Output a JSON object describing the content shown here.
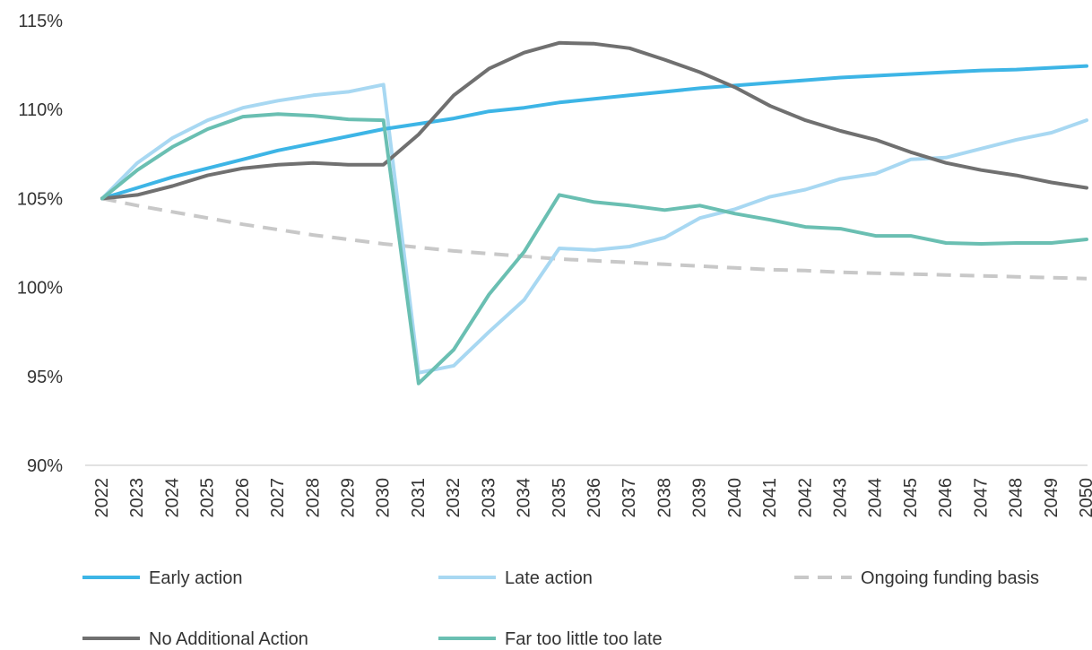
{
  "chart_data": {
    "type": "line",
    "title": "",
    "xlabel": "",
    "ylabel": "",
    "ylim": [
      90,
      115
    ],
    "yticks": [
      90,
      95,
      100,
      105,
      110,
      115
    ],
    "y_tick_suffix": "%",
    "grid": false,
    "legend_position": "bottom",
    "x": [
      "2022",
      "2023",
      "2024",
      "2025",
      "2026",
      "2027",
      "2028",
      "2029",
      "2030",
      "2031",
      "2032",
      "2033",
      "2034",
      "2035",
      "2036",
      "2037",
      "2038",
      "2039",
      "2040",
      "2041",
      "2042",
      "2043",
      "2044",
      "2045",
      "2046",
      "2047",
      "2048",
      "2049",
      "2050"
    ],
    "series": [
      {
        "name": "Early action",
        "color": "#3DB5E6",
        "dashed": false,
        "values": [
          105.0,
          105.6,
          106.2,
          106.7,
          107.2,
          107.7,
          108.1,
          108.5,
          108.9,
          109.2,
          109.5,
          109.9,
          110.1,
          110.4,
          110.6,
          110.8,
          111.0,
          111.2,
          111.35,
          111.5,
          111.65,
          111.8,
          111.9,
          112.0,
          112.1,
          112.2,
          112.25,
          112.35,
          112.45
        ]
      },
      {
        "name": "Late action",
        "color": "#A8D8F2",
        "dashed": false,
        "values": [
          105.0,
          107.0,
          108.4,
          109.4,
          110.1,
          110.5,
          110.8,
          111.0,
          111.4,
          95.2,
          95.6,
          97.5,
          99.3,
          102.2,
          102.1,
          102.3,
          102.8,
          103.9,
          104.4,
          105.1,
          105.5,
          106.1,
          106.4,
          107.2,
          107.3,
          107.8,
          108.3,
          108.7,
          109.4
        ]
      },
      {
        "name": "Ongoing funding basis",
        "color": "#C8C8C8",
        "dashed": true,
        "values": [
          105.0,
          104.6,
          104.25,
          103.9,
          103.55,
          103.25,
          102.95,
          102.7,
          102.45,
          102.25,
          102.05,
          101.9,
          101.75,
          101.6,
          101.5,
          101.4,
          101.3,
          101.2,
          101.1,
          101.0,
          100.95,
          100.85,
          100.8,
          100.75,
          100.7,
          100.65,
          100.6,
          100.55,
          100.5
        ]
      },
      {
        "name": "No Additional Action",
        "color": "#707070",
        "dashed": false,
        "values": [
          105.0,
          105.2,
          105.7,
          106.3,
          106.7,
          106.9,
          107.0,
          106.9,
          106.9,
          108.6,
          110.8,
          112.3,
          113.2,
          113.75,
          113.7,
          113.45,
          112.8,
          112.1,
          111.25,
          110.2,
          109.4,
          108.8,
          108.3,
          107.6,
          107.0,
          106.6,
          106.3,
          105.9,
          105.6
        ]
      },
      {
        "name": "Far too little too late",
        "color": "#6ABFB2",
        "dashed": false,
        "values": [
          105.0,
          106.6,
          107.9,
          108.9,
          109.6,
          109.75,
          109.65,
          109.45,
          109.4,
          94.6,
          96.5,
          99.6,
          102.0,
          105.2,
          104.8,
          104.6,
          104.35,
          104.6,
          104.15,
          103.8,
          103.4,
          103.3,
          102.9,
          102.9,
          102.5,
          102.45,
          102.5,
          102.5,
          102.7
        ]
      }
    ],
    "legend_rows": [
      [
        "Early action",
        "Late action",
        "Ongoing funding basis"
      ],
      [
        "No Additional Action",
        "Far too little too late"
      ]
    ]
  }
}
